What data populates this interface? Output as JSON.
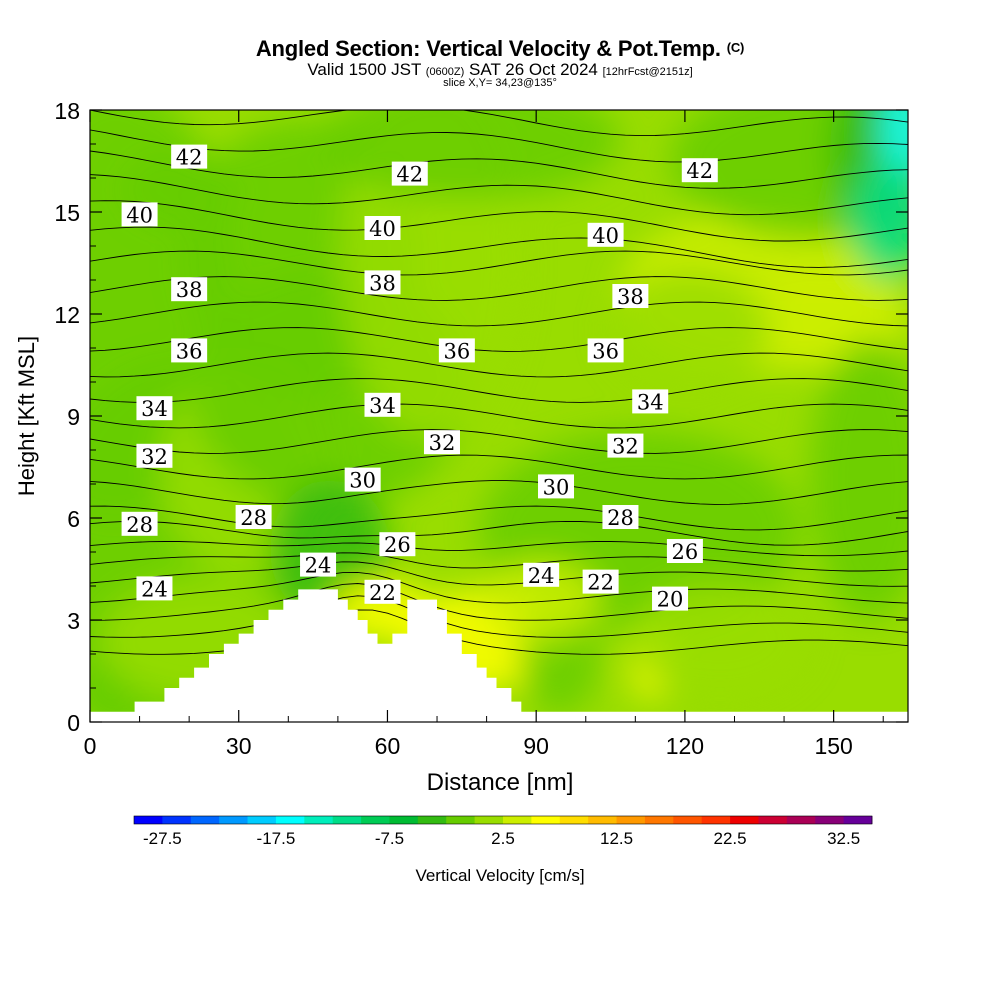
{
  "header": {
    "title": "Angled Section: Vertical Velocity & Pot.Temp.",
    "title_unit": "(C)",
    "valid_prefix": "Valid 1500 JST",
    "valid_zulu": "(0600Z)",
    "valid_date": "SAT 26 Oct 2024",
    "forecast": "[12hrFcst@2151z]",
    "slice": "slice X,Y= 34,23@135°"
  },
  "chart_data": {
    "type": "heatmap",
    "xlabel": "Distance [nm]",
    "ylabel": "Height [Kft MSL]",
    "xlim": [
      0,
      165
    ],
    "ylim": [
      0,
      18
    ],
    "xticks": [
      0,
      30,
      60,
      90,
      120,
      150
    ],
    "yticks": [
      0,
      3,
      6,
      9,
      12,
      15,
      18
    ],
    "colorbar": {
      "label": "Vertical Velocity [cm/s]",
      "range": [
        -30,
        35
      ],
      "step": 2.5,
      "tick_labels": [
        -27.5,
        -17.5,
        -7.5,
        2.5,
        12.5,
        22.5,
        32.5
      ],
      "colors": [
        "#0000ff",
        "#0033ff",
        "#0066ff",
        "#0099ff",
        "#00ccff",
        "#00ffff",
        "#00eebb",
        "#00dd88",
        "#00cc55",
        "#00bb33",
        "#33bb11",
        "#66cc00",
        "#99dd00",
        "#ccee00",
        "#ffff00",
        "#ffdd00",
        "#ffbb00",
        "#ff9900",
        "#ff7700",
        "#ff5500",
        "#ff3300",
        "#ee0000",
        "#cc0033",
        "#aa0055",
        "#880077",
        "#660099"
      ]
    },
    "terrain_kft": [
      [
        0,
        0.3
      ],
      [
        9,
        0.3
      ],
      [
        9,
        0.6
      ],
      [
        15,
        0.6
      ],
      [
        15,
        1.0
      ],
      [
        18,
        1.0
      ],
      [
        18,
        1.3
      ],
      [
        21,
        1.3
      ],
      [
        21,
        1.6
      ],
      [
        24,
        1.6
      ],
      [
        24,
        2.0
      ],
      [
        27,
        2.0
      ],
      [
        27,
        2.3
      ],
      [
        30,
        2.3
      ],
      [
        30,
        2.6
      ],
      [
        33,
        2.6
      ],
      [
        33,
        3.0
      ],
      [
        36,
        3.0
      ],
      [
        36,
        3.3
      ],
      [
        39,
        3.3
      ],
      [
        39,
        3.6
      ],
      [
        42,
        3.6
      ],
      [
        42,
        3.9
      ],
      [
        50,
        3.9
      ],
      [
        50,
        3.6
      ],
      [
        52,
        3.6
      ],
      [
        52,
        3.3
      ],
      [
        54,
        3.3
      ],
      [
        54,
        3.0
      ],
      [
        56,
        3.0
      ],
      [
        56,
        2.6
      ],
      [
        58,
        2.6
      ],
      [
        58,
        2.3
      ],
      [
        61,
        2.3
      ],
      [
        61,
        2.6
      ],
      [
        64,
        2.6
      ],
      [
        64,
        3.6
      ],
      [
        70,
        3.6
      ],
      [
        70,
        3.3
      ],
      [
        72,
        3.3
      ],
      [
        72,
        2.6
      ],
      [
        75,
        2.6
      ],
      [
        75,
        2.0
      ],
      [
        78,
        2.0
      ],
      [
        78,
        1.6
      ],
      [
        80,
        1.6
      ],
      [
        80,
        1.3
      ],
      [
        82,
        1.3
      ],
      [
        82,
        1.0
      ],
      [
        85,
        1.0
      ],
      [
        85,
        0.6
      ],
      [
        87,
        0.6
      ],
      [
        87,
        0.3
      ],
      [
        165,
        0.3
      ]
    ],
    "theta_contour_labels": [
      {
        "value": 42,
        "x": 20,
        "y": 16.6
      },
      {
        "value": 42,
        "x": 64.5,
        "y": 16.1
      },
      {
        "value": 42,
        "x": 123,
        "y": 16.2
      },
      {
        "value": 40,
        "x": 10,
        "y": 14.9
      },
      {
        "value": 40,
        "x": 59,
        "y": 14.5
      },
      {
        "value": 40,
        "x": 104,
        "y": 14.3
      },
      {
        "value": 38,
        "x": 20,
        "y": 12.7
      },
      {
        "value": 38,
        "x": 59,
        "y": 12.9
      },
      {
        "value": 38,
        "x": 109,
        "y": 12.5
      },
      {
        "value": 36,
        "x": 20,
        "y": 10.9
      },
      {
        "value": 36,
        "x": 74,
        "y": 10.9
      },
      {
        "value": 36,
        "x": 104,
        "y": 10.9
      },
      {
        "value": 34,
        "x": 13,
        "y": 9.2
      },
      {
        "value": 34,
        "x": 59,
        "y": 9.3
      },
      {
        "value": 34,
        "x": 113,
        "y": 9.4
      },
      {
        "value": 32,
        "x": 13,
        "y": 7.8
      },
      {
        "value": 32,
        "x": 71,
        "y": 8.2
      },
      {
        "value": 32,
        "x": 108,
        "y": 8.1
      },
      {
        "value": 30,
        "x": 55,
        "y": 7.1
      },
      {
        "value": 30,
        "x": 94,
        "y": 6.9
      },
      {
        "value": 28,
        "x": 10,
        "y": 5.8
      },
      {
        "value": 28,
        "x": 33,
        "y": 6.0
      },
      {
        "value": 28,
        "x": 107,
        "y": 6.0
      },
      {
        "value": 26,
        "x": 62,
        "y": 5.2
      },
      {
        "value": 26,
        "x": 120,
        "y": 5.0
      },
      {
        "value": 24,
        "x": 13,
        "y": 3.9
      },
      {
        "value": 24,
        "x": 46,
        "y": 4.6
      },
      {
        "value": 24,
        "x": 91,
        "y": 4.3
      },
      {
        "value": 22,
        "x": 59,
        "y": 3.8
      },
      {
        "value": 22,
        "x": 103,
        "y": 4.1
      },
      {
        "value": 20,
        "x": 117,
        "y": 3.6
      }
    ]
  }
}
